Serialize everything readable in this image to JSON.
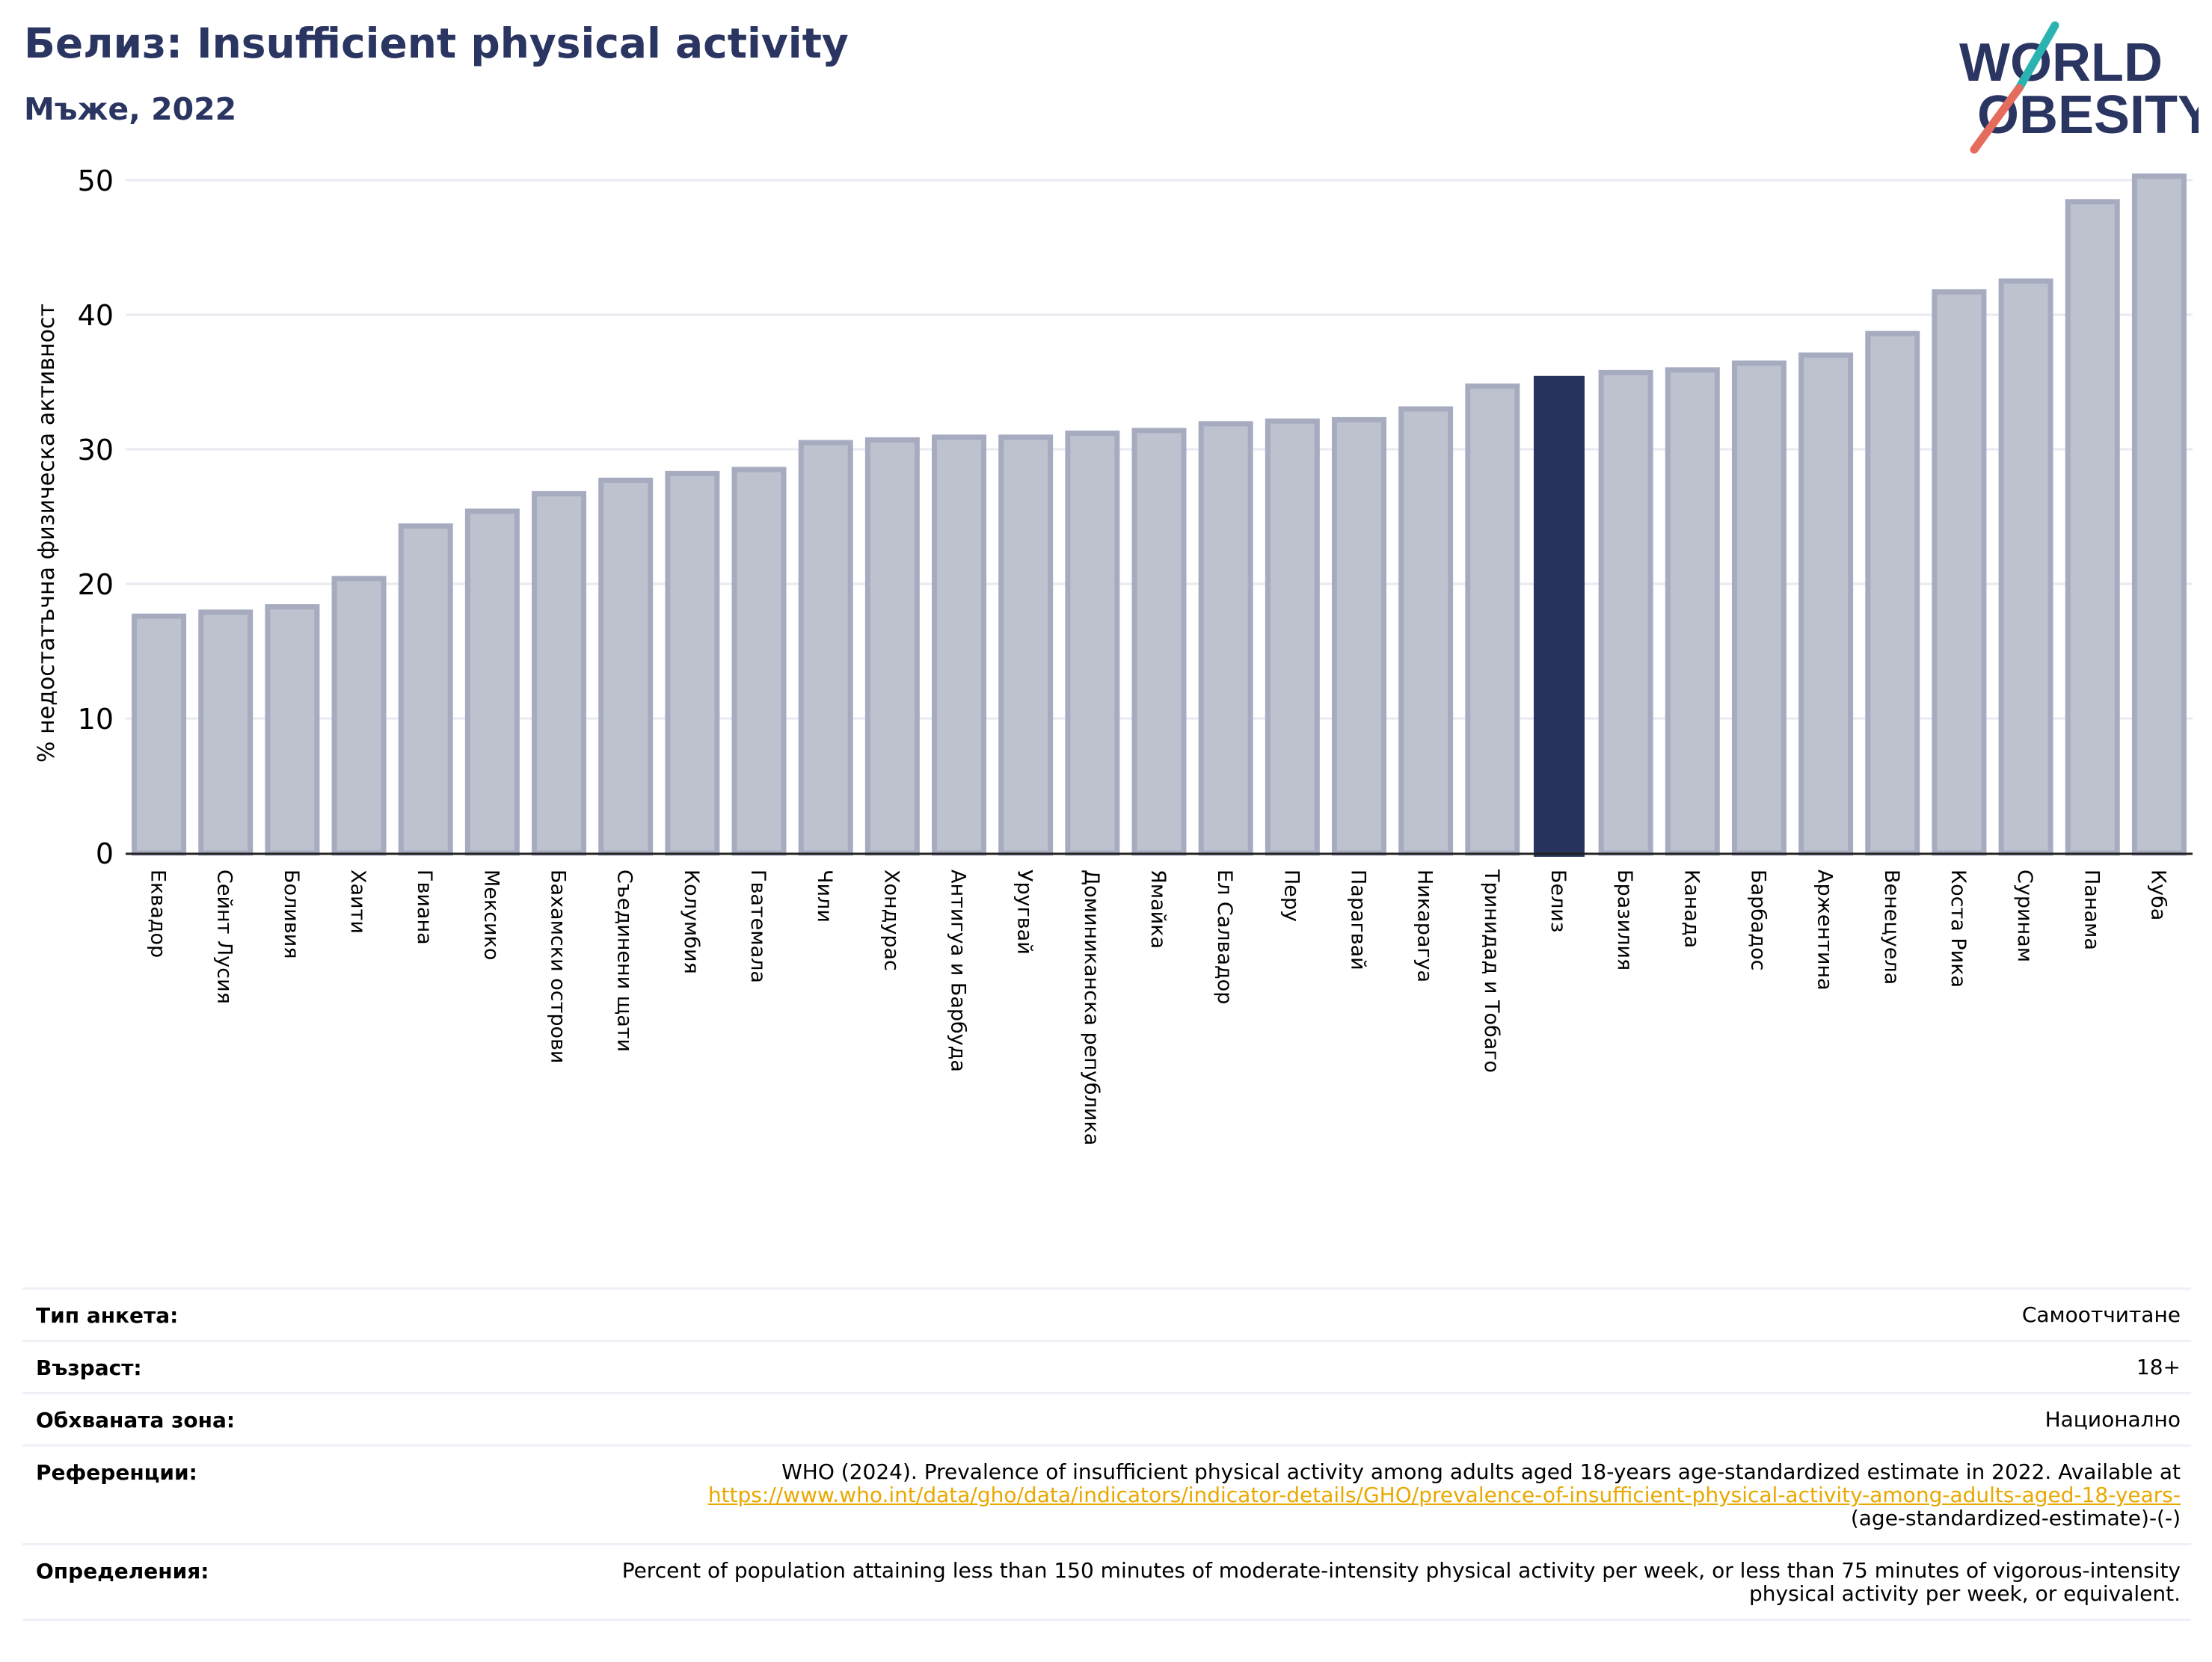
{
  "header": {
    "title": "Белиз: Insufficient physical activity",
    "subtitle": "Мъже, 2022"
  },
  "logo": {
    "line1": "WORLD",
    "line2": "OBESITY",
    "icon": "world-obesity-logo"
  },
  "colors": {
    "bar": "#bec1ce",
    "bar_border": "#a6abc0",
    "highlight": "#28335f",
    "text_dark": "#2a3561",
    "link": "#e8a800"
  },
  "chart_data": {
    "type": "bar",
    "ylabel": "% недостатъчна физическа активност",
    "xlabel": "",
    "ylim": [
      0,
      52
    ],
    "yticks": [
      0,
      10,
      20,
      30,
      40,
      50
    ],
    "grid": true,
    "highlight": "Белиз",
    "categories": [
      "Еквадор",
      "Сейнт Лусия",
      "Боливия",
      "Хаити",
      "Гвиана",
      "Мексико",
      "Бахамски острови",
      "Съединени щати",
      "Колумбия",
      "Гватемала",
      "Чили",
      "Хондурас",
      "Антигуа и Барбуда",
      "Уругвай",
      "Доминиканска република",
      "Ямайка",
      "Ел Салвадор",
      "Перу",
      "Парагвай",
      "Никарагуа",
      "Тринидад и Тобаго",
      "Белиз",
      "Бразилия",
      "Канада",
      "Барбадос",
      "Аржентина",
      "Венецуела",
      "Коста Рика",
      "Суринам",
      "Панама",
      "Куба"
    ],
    "values": [
      17.6,
      17.9,
      18.3,
      20.4,
      24.3,
      25.4,
      26.7,
      27.7,
      28.2,
      28.5,
      30.5,
      30.7,
      30.9,
      30.9,
      31.2,
      31.4,
      31.9,
      32.1,
      32.2,
      33.0,
      34.7,
      35.4,
      35.7,
      35.9,
      36.4,
      37.0,
      38.6,
      41.7,
      42.5,
      48.4,
      50.3
    ]
  },
  "info": {
    "survey_label": "Тип анкета:",
    "survey_value": "Самоотчитане",
    "age_label": "Възраст:",
    "age_value": "18+",
    "coverage_label": "Обхваната зона:",
    "coverage_value": "Национално",
    "ref_label": "Референции:",
    "ref_text": "WHO (2024). Prevalence of insufficient physical activity among adults aged 18-years age-standardized estimate in 2022. Available at",
    "ref_link": "https://www.who.int/data/gho/data/indicators/indicator-details/GHO/prevalence-of-insufficient-physical-activity-among-adults-aged-18-years-",
    "ref_tail": "(age-standardized-estimate)-(-)",
    "def_label": "Определения:",
    "def_text": "Percent of population attaining less than 150 minutes of moderate-intensity physical activity per week, or less than 75 minutes of vigorous-intensity physical activity per week, or equivalent."
  }
}
